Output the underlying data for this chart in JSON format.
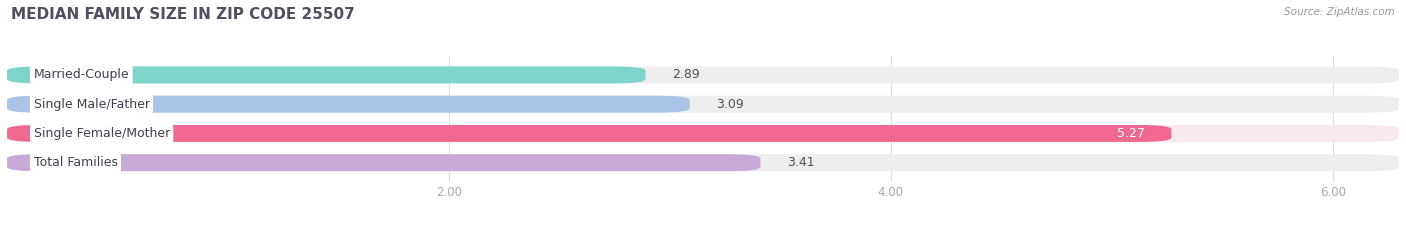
{
  "title": "MEDIAN FAMILY SIZE IN ZIP CODE 25507",
  "source_text": "Source: ZipAtlas.com",
  "categories": [
    "Married-Couple",
    "Single Male/Father",
    "Single Female/Mother",
    "Total Families"
  ],
  "values": [
    2.89,
    3.09,
    5.27,
    3.41
  ],
  "bar_colors": [
    "#7dd4c8",
    "#aac4e8",
    "#f06890",
    "#c8aad8"
  ],
  "bar_background_colors": [
    "#eeeeee",
    "#eeeeee",
    "#f8e8f0",
    "#eeeeee"
  ],
  "xlim": [
    0,
    6.3
  ],
  "xmin": 0,
  "xticks": [
    2.0,
    4.0,
    6.0
  ],
  "xticklabels": [
    "2.00",
    "4.00",
    "6.00"
  ],
  "bg_color": "#ffffff",
  "bar_height": 0.58,
  "bar_gap": 0.2,
  "figsize": [
    14.06,
    2.33
  ],
  "dpi": 100,
  "title_color": "#505060",
  "tick_color": "#aaaaaa",
  "label_fontsize": 9,
  "value_fontsize": 9,
  "title_fontsize": 11,
  "grid_color": "#dddddd"
}
